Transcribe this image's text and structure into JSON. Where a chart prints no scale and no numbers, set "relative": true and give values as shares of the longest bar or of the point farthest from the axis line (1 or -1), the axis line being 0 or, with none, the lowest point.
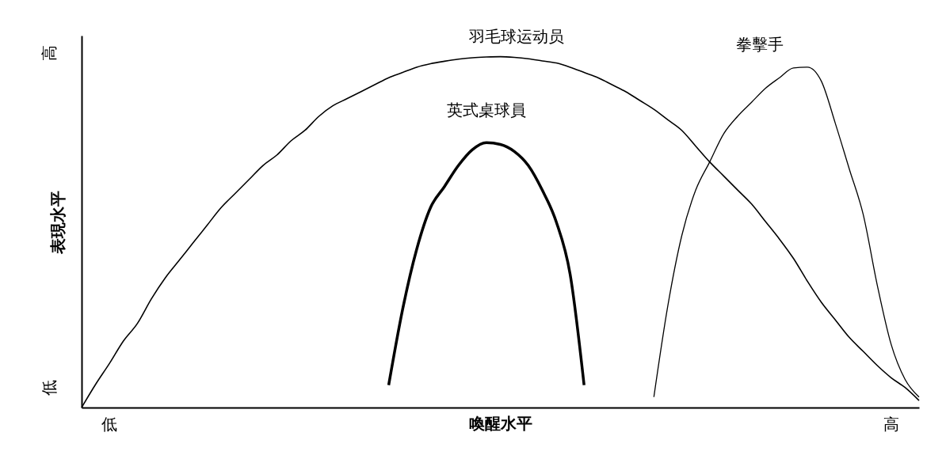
{
  "chart_data": {
    "type": "line",
    "relative": true,
    "xlabel": "喚醒水平",
    "ylabel": "表現水平",
    "categories": [
      null,
      null,
      null,
      null,
      null,
      null,
      null,
      null,
      null,
      null,
      null,
      null,
      null,
      null,
      null,
      null,
      null,
      null,
      null,
      null,
      null,
      null,
      null,
      null,
      null,
      null,
      null,
      null,
      null,
      null,
      null,
      null,
      null,
      null,
      null,
      null,
      null,
      null,
      null,
      null,
      null,
      null,
      null,
      null,
      null,
      null,
      null,
      null,
      null,
      null,
      null,
      null,
      null,
      null,
      null,
      null,
      null,
      null,
      null,
      null,
      null
    ],
    "annotations": [
      "低",
      "高",
      "低",
      "高"
    ],
    "grid": false,
    "legend": false,
    "marker": "none",
    "line_style": "solid",
    "series": [
      {
        "name": "羽毛球运动员",
        "color": "#000000",
        "values": [
          0.0,
          0.066,
          0.126,
          0.19,
          0.24,
          0.31,
          0.37,
          0.42,
          0.47,
          0.52,
          0.57,
          0.61,
          0.65,
          0.69,
          0.72,
          0.76,
          0.79,
          0.83,
          0.86,
          0.88,
          0.9,
          0.92,
          0.94,
          0.955,
          0.97,
          0.98,
          0.987,
          0.993,
          0.997,
          0.999,
          1.0,
          0.998,
          0.994,
          0.988,
          0.982,
          0.97,
          0.955,
          0.94,
          0.92,
          0.9,
          0.875,
          0.85,
          0.82,
          0.79,
          0.745,
          0.7,
          0.66,
          0.62,
          0.58,
          0.53,
          0.48,
          0.425,
          0.36,
          0.3,
          0.25,
          0.2,
          0.16,
          0.12,
          0.085,
          0.057,
          0.02
        ]
      },
      {
        "name": "英式桌球員",
        "color": "#000000",
        "values": [
          null,
          null,
          null,
          null,
          null,
          null,
          null,
          null,
          null,
          null,
          null,
          null,
          null,
          null,
          null,
          null,
          null,
          null,
          null,
          null,
          null,
          null,
          0.064,
          0.28,
          0.45,
          0.57,
          0.63,
          0.69,
          0.735,
          0.755,
          0.75,
          0.73,
          0.69,
          0.62,
          0.53,
          0.38,
          0.064,
          null,
          null,
          null,
          null,
          null,
          null,
          null,
          null,
          null,
          null,
          null,
          null,
          null,
          null,
          null,
          null,
          null,
          null,
          null,
          null,
          null,
          null,
          null,
          null
        ]
      },
      {
        "name": "拳擊手",
        "color": "#000000",
        "values": [
          null,
          null,
          null,
          null,
          null,
          null,
          null,
          null,
          null,
          null,
          null,
          null,
          null,
          null,
          null,
          null,
          null,
          null,
          null,
          null,
          null,
          null,
          null,
          null,
          null,
          null,
          null,
          null,
          null,
          null,
          null,
          null,
          null,
          null,
          null,
          null,
          null,
          null,
          null,
          null,
          null,
          0.03,
          0.29,
          0.49,
          0.62,
          0.7,
          0.78,
          0.83,
          0.87,
          0.91,
          0.94,
          0.968,
          0.97,
          0.93,
          0.81,
          0.68,
          0.55,
          0.35,
          0.18,
          0.08,
          0.03
        ]
      }
    ]
  }
}
